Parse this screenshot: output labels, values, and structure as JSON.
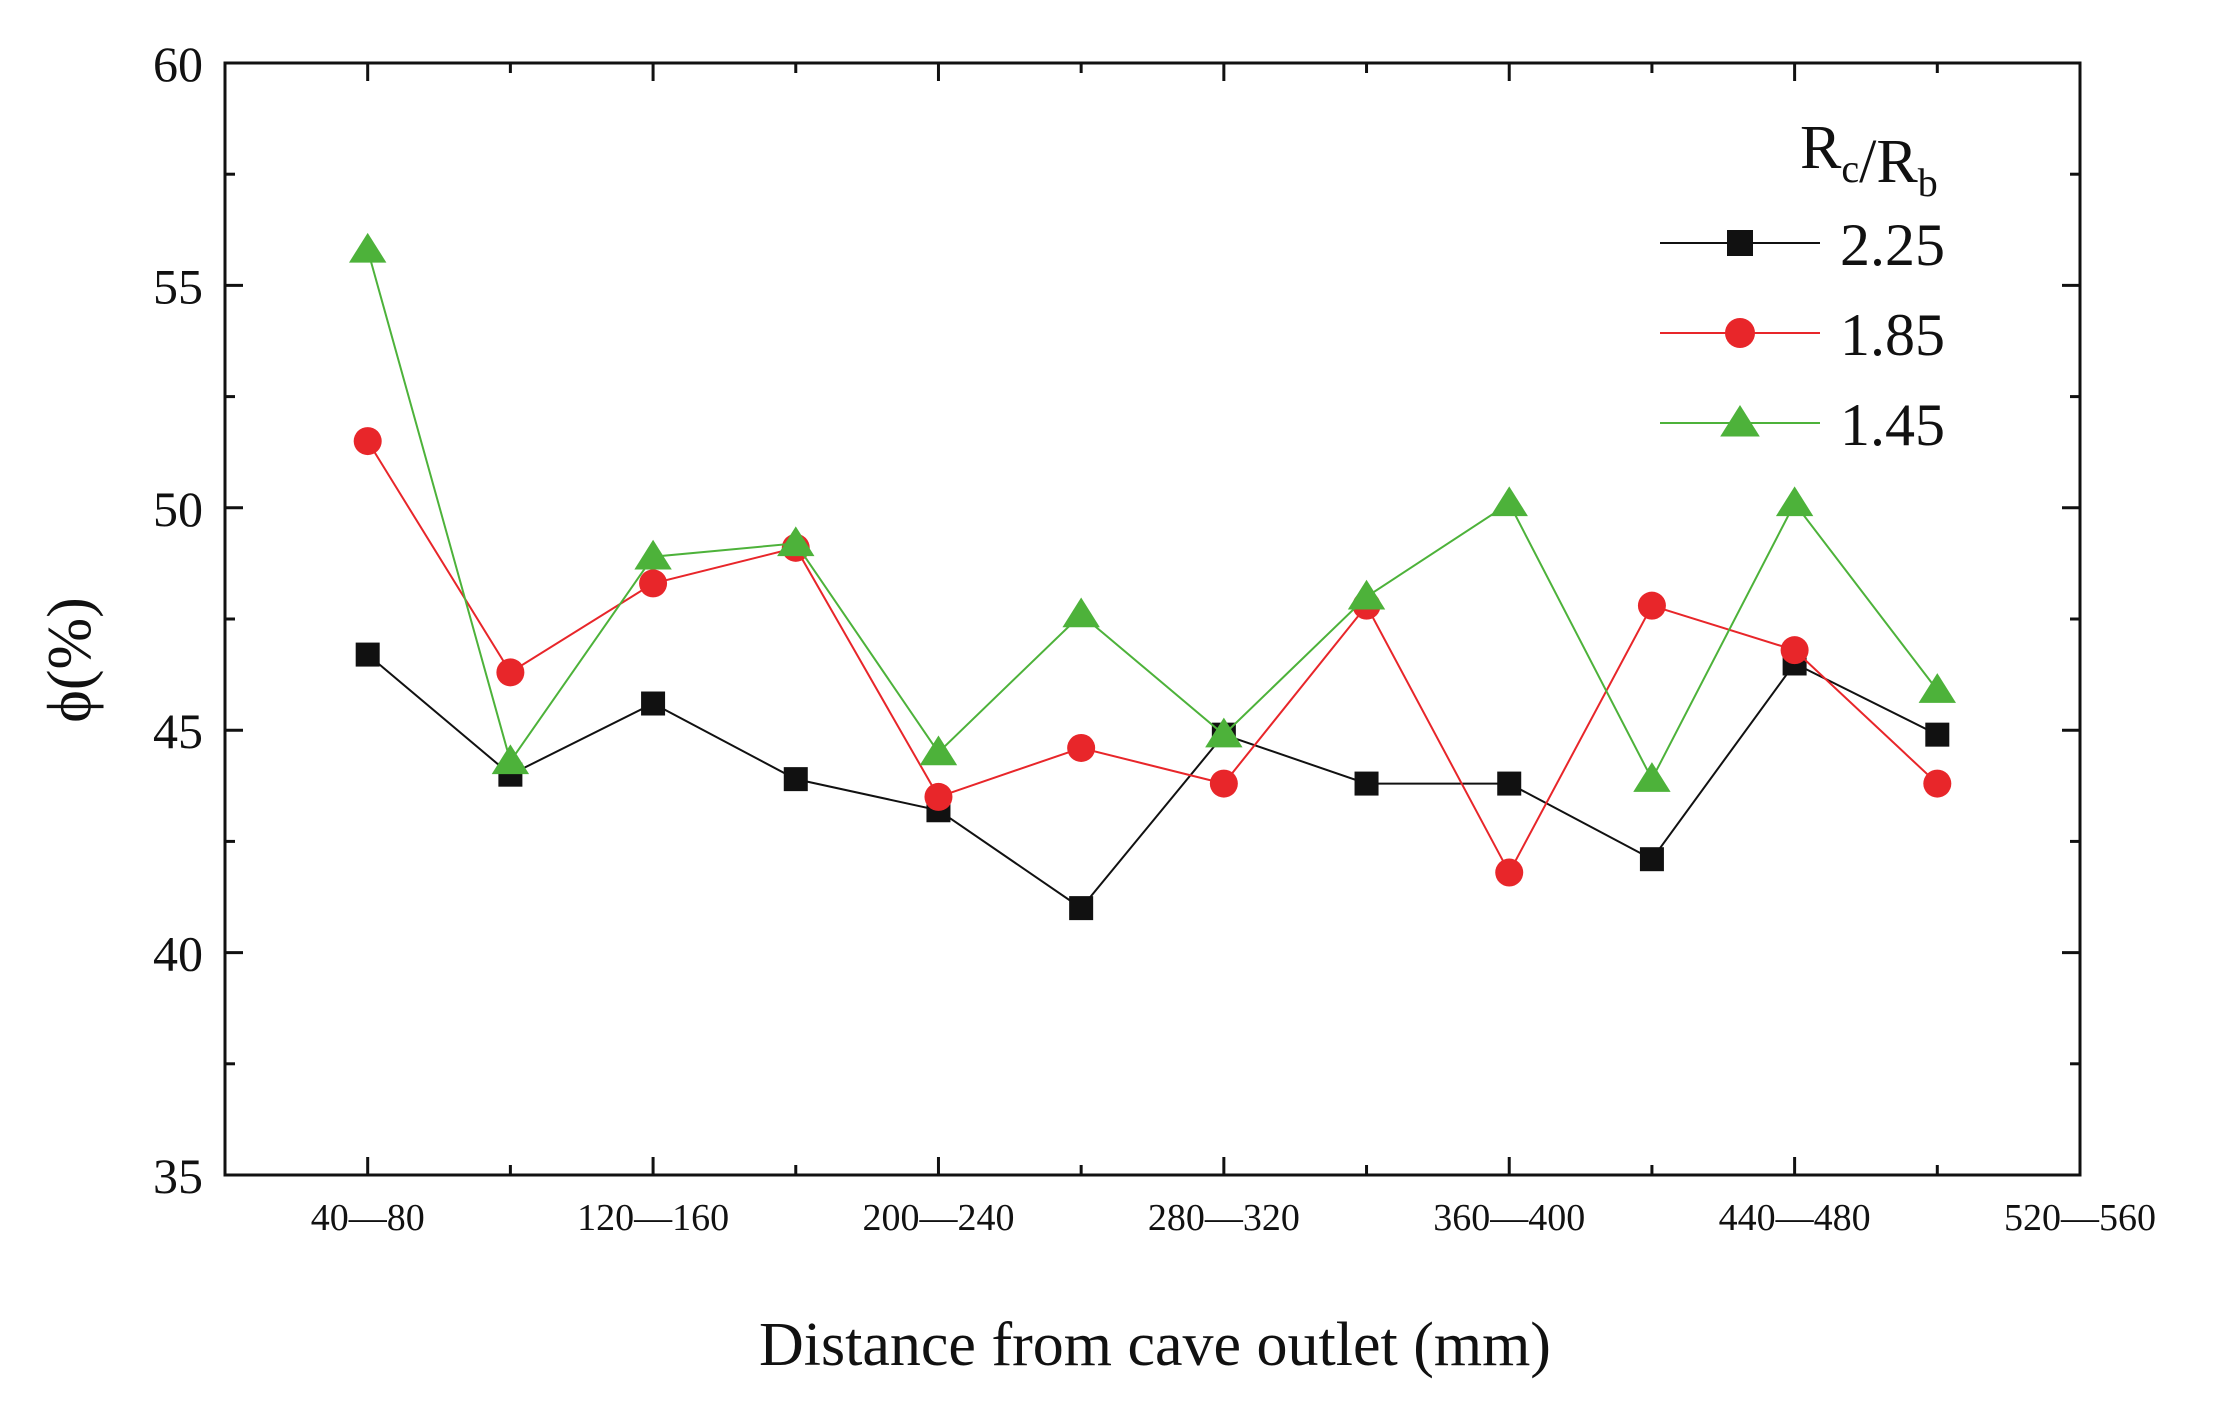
{
  "chart_data": {
    "type": "line",
    "title": "",
    "xlabel": "Distance from cave outlet (mm)",
    "ylabel": "ϕ(%)",
    "ylim": [
      35,
      60
    ],
    "yticks": [
      35,
      40,
      45,
      50,
      55,
      60
    ],
    "x": [
      1,
      2,
      3,
      4,
      5,
      6,
      7,
      8,
      9,
      10,
      11,
      12
    ],
    "xlim": [
      0,
      13
    ],
    "xtick_positions": [
      1,
      3,
      5,
      7,
      9,
      11,
      13
    ],
    "xtick_labels": [
      "40—80",
      "120—160",
      "200—240",
      "280—320",
      "360—400",
      "440—480",
      "520—560"
    ],
    "legend": {
      "title_main": "R",
      "title_sub1": "c",
      "title_sep": "/R",
      "title_sub2": "b",
      "position": "top-right"
    },
    "series": [
      {
        "name": "2.25",
        "color": "#111111",
        "marker": "square",
        "values": [
          46.7,
          44.0,
          45.6,
          43.9,
          43.2,
          41.0,
          44.9,
          43.8,
          43.8,
          42.1,
          46.5,
          44.9
        ]
      },
      {
        "name": "1.85",
        "color": "#e8262a",
        "marker": "circle",
        "values": [
          51.5,
          46.3,
          48.3,
          49.1,
          43.5,
          44.6,
          43.8,
          47.8,
          41.8,
          47.8,
          46.8,
          43.8
        ]
      },
      {
        "name": "1.45",
        "color": "#4db23a",
        "marker": "triangle",
        "values": [
          55.8,
          44.3,
          48.9,
          49.2,
          44.5,
          47.6,
          44.9,
          48.0,
          50.1,
          43.9,
          50.1,
          45.9
        ]
      }
    ]
  }
}
